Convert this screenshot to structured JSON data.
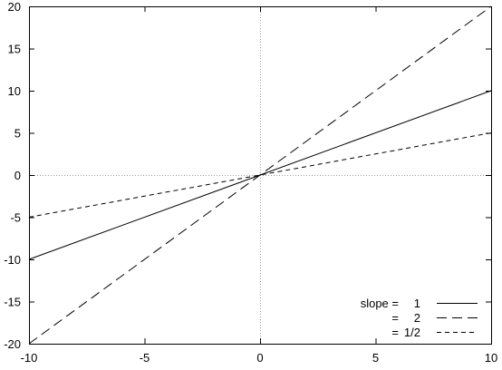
{
  "chart_data": {
    "type": "line",
    "title": "",
    "xlabel": "",
    "ylabel": "",
    "xlim": [
      -10,
      10
    ],
    "ylim": [
      -20,
      20
    ],
    "xticks": [
      -10,
      -5,
      0,
      5,
      10
    ],
    "yticks": [
      -20,
      -15,
      -10,
      -5,
      0,
      5,
      10,
      15,
      20
    ],
    "grid": false,
    "zero_axes": true,
    "legend_position": "bottom-right",
    "legend": {
      "prefix": "slope =",
      "continuation_prefix": "="
    },
    "series": [
      {
        "name": "1",
        "style": "solid",
        "color": "#000000",
        "x": [
          -10,
          10
        ],
        "y": [
          -10,
          10
        ]
      },
      {
        "name": "2",
        "style": "long-dash",
        "color": "#000000",
        "x": [
          -10,
          10
        ],
        "y": [
          -20,
          20
        ]
      },
      {
        "name": "1/2",
        "style": "short-dash",
        "color": "#000000",
        "x": [
          -10,
          10
        ],
        "y": [
          -5,
          5
        ]
      }
    ]
  }
}
